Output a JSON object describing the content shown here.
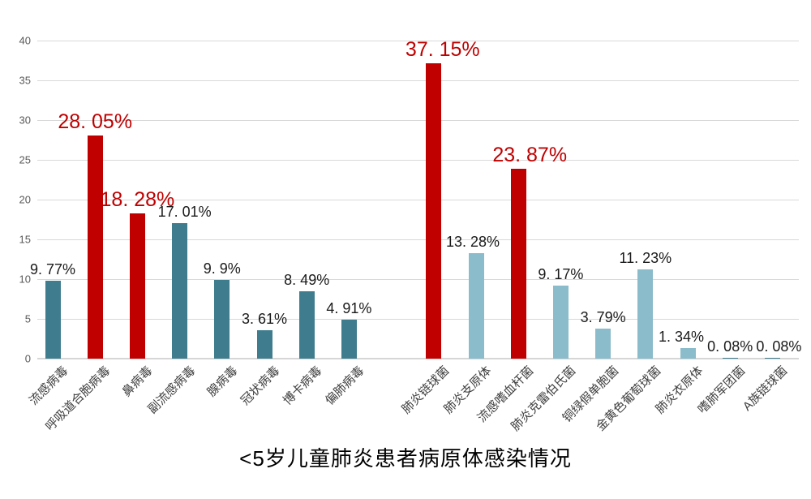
{
  "title": "<5岁儿童肺炎患者病原体感染情况",
  "colors": {
    "teal": "#3F7D8E",
    "red": "#C00000",
    "lightblue": "#8BBCCB",
    "gridline": "#D9D9D9",
    "axis_tick_text": "#595959",
    "category_text": "#404040",
    "value_label_black": "#1A1A1A",
    "value_label_red": "#C00000"
  },
  "chart_data": {
    "type": "bar",
    "title": "<5岁儿童肺炎患者病原体感染情况",
    "xlabel": "",
    "ylabel": "",
    "ylim": [
      0,
      40
    ],
    "yticks": [
      0,
      5,
      10,
      15,
      20,
      25,
      30,
      35,
      40
    ],
    "grid": true,
    "legend": false,
    "groups": [
      "viruses",
      "bacteria-and-atypical"
    ],
    "items": [
      {
        "label": "流感病毒",
        "value": 9.77,
        "display": "9. 77%",
        "color": "teal",
        "emphasis": false,
        "slot": 0
      },
      {
        "label": "呼吸道合胞病毒",
        "value": 28.05,
        "display": "28. 05%",
        "color": "red",
        "emphasis": true,
        "slot": 1
      },
      {
        "label": "鼻病毒",
        "value": 18.28,
        "display": "18. 28%",
        "color": "red",
        "emphasis": true,
        "slot": 2
      },
      {
        "label": "副流感病毒",
        "value": 17.01,
        "display": "17. 01%",
        "color": "teal",
        "emphasis": false,
        "slot": 3,
        "label_dx": 6
      },
      {
        "label": "腺病毒",
        "value": 9.9,
        "display": "9. 9%",
        "color": "teal",
        "emphasis": false,
        "slot": 4
      },
      {
        "label": "冠状病毒",
        "value": 3.61,
        "display": "3. 61%",
        "color": "teal",
        "emphasis": false,
        "slot": 5
      },
      {
        "label": "博卡病毒",
        "value": 8.49,
        "display": "8. 49%",
        "color": "teal",
        "emphasis": false,
        "slot": 6
      },
      {
        "label": "偏肺病毒",
        "value": 4.91,
        "display": "4. 91%",
        "color": "teal",
        "emphasis": false,
        "slot": 7
      },
      {
        "label": "肺炎链球菌",
        "value": 37.15,
        "display": "37. 15%",
        "color": "red",
        "emphasis": true,
        "slot": 9,
        "label_dx": 11
      },
      {
        "label": "肺炎支原体",
        "value": 13.28,
        "display": "13. 28%",
        "color": "lightblue",
        "emphasis": false,
        "slot": 10,
        "label_dx": -4
      },
      {
        "label": "流感嗜血杆菌",
        "value": 23.87,
        "display": "23. 87%",
        "color": "red",
        "emphasis": true,
        "slot": 11,
        "label_dx": 14
      },
      {
        "label": "肺炎克雷伯氏菌",
        "value": 9.17,
        "display": "9. 17%",
        "color": "lightblue",
        "emphasis": false,
        "slot": 12
      },
      {
        "label": "铜绿假单胞菌",
        "value": 3.79,
        "display": "3. 79%",
        "color": "lightblue",
        "emphasis": false,
        "slot": 13
      },
      {
        "label": "金黄色葡萄球菌",
        "value": 11.23,
        "display": "11. 23%",
        "color": "lightblue",
        "emphasis": false,
        "slot": 14
      },
      {
        "label": "肺炎衣原体",
        "value": 1.34,
        "display": "1. 34%",
        "color": "lightblue",
        "emphasis": false,
        "slot": 15,
        "label_dx": -8
      },
      {
        "label": "嗜肺军团菌",
        "value": 0.08,
        "display": "0. 08%",
        "color": "teal",
        "emphasis": false,
        "slot": 16
      },
      {
        "label": "A族链球菌",
        "value": 0.08,
        "display": "0. 08%",
        "color": "teal",
        "emphasis": false,
        "slot": 17,
        "label_dx": 8
      }
    ]
  }
}
